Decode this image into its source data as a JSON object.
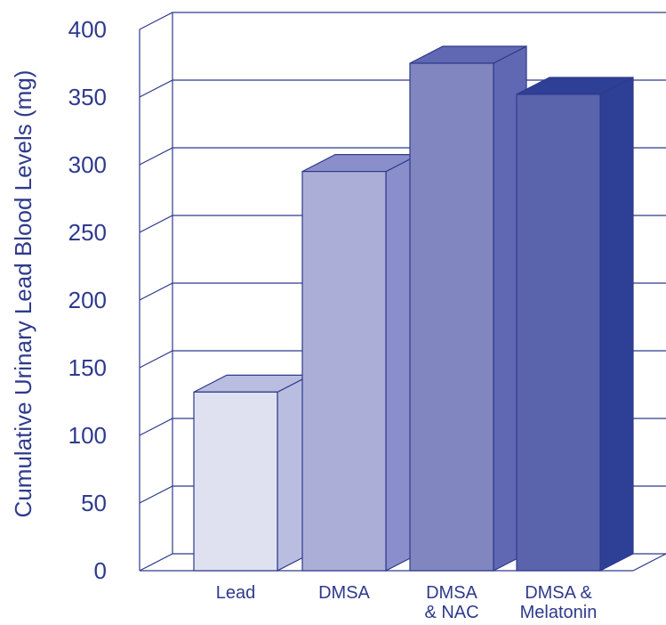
{
  "chart_data": {
    "type": "bar",
    "title": "",
    "xlabel": "",
    "ylabel": "Cumulative Urinary Lead Blood Levels (mg)",
    "categories": [
      [
        "Lead"
      ],
      [
        "DMSA"
      ],
      [
        "DMSA",
        "& NAC"
      ],
      [
        "DMSA &",
        "Melatonin"
      ]
    ],
    "values": [
      132,
      295,
      375,
      352
    ],
    "ylim": [
      0,
      400
    ],
    "yticks": [
      0,
      50,
      100,
      150,
      200,
      250,
      300,
      350,
      400
    ],
    "grid": true,
    "legend": "none",
    "colors": [
      {
        "front": "#dfe1f1",
        "top": "#b9bde0",
        "side": "#b9bde0"
      },
      {
        "front": "#abaed6",
        "top": "#8a8fcb",
        "side": "#8a8fcb"
      },
      {
        "front": "#8186c0",
        "top": "#6168b3",
        "side": "#6168b3"
      },
      {
        "front": "#5a64ad",
        "top": "#2e3f96",
        "side": "#2e3f96"
      }
    ],
    "line_color": "#2e3a8c"
  }
}
